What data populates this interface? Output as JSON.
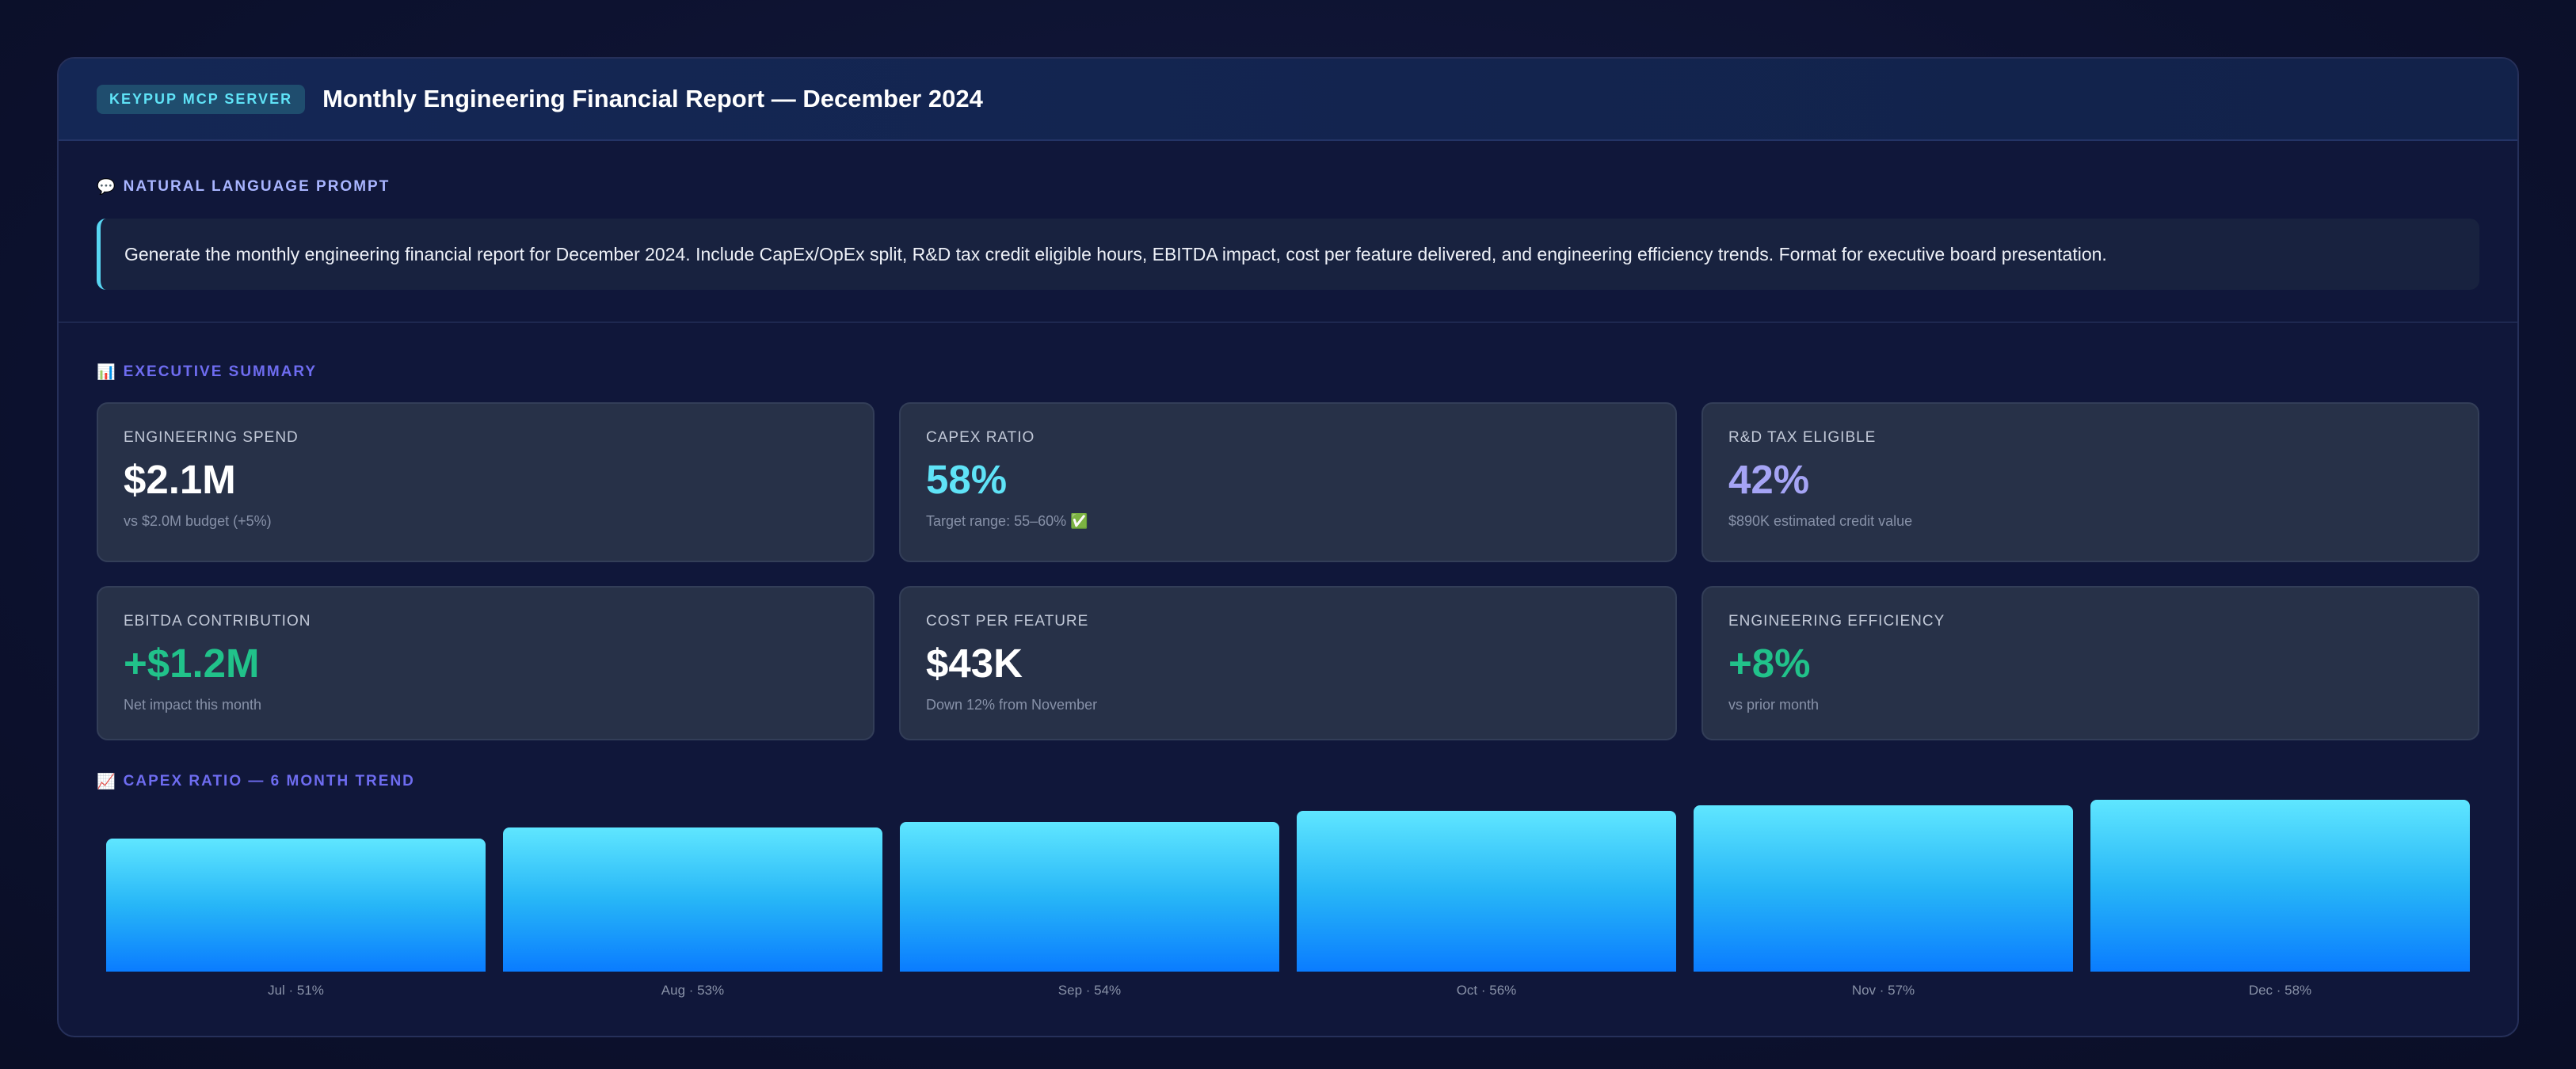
{
  "header": {
    "badge": "KEYPUP MCP SERVER",
    "title": "Monthly Engineering Financial Report — December 2024"
  },
  "prompt": {
    "icon": "speech-bubble-icon",
    "label": "NATURAL LANGUAGE PROMPT",
    "text": "Generate the monthly engineering financial report for December 2024. Include CapEx/OpEx split, R&D tax credit eligible hours, EBITDA impact, cost per feature delivered, and engineering efficiency trends. Format for executive board presentation."
  },
  "summary": {
    "icon": "bar-chart-icon",
    "label": "EXECUTIVE SUMMARY",
    "kpis": [
      {
        "label": "ENGINEERING SPEND",
        "value": "$2.1M",
        "sub": "vs $2.0M budget (+5%)",
        "color": "#ffffff"
      },
      {
        "label": "CAPEX RATIO",
        "value": "58%",
        "sub": "Target range: 55–60% ✅",
        "color": "#5fe3f7"
      },
      {
        "label": "R&D TAX ELIGIBLE",
        "value": "42%",
        "sub": "$890K estimated credit value",
        "color": "#a5a4f5"
      },
      {
        "label": "EBITDA CONTRIBUTION",
        "value": "+$1.2M",
        "sub": "Net impact this month",
        "color": "#21c28a"
      },
      {
        "label": "COST PER FEATURE",
        "value": "$43K",
        "sub": "Down 12% from November",
        "color": "#ffffff"
      },
      {
        "label": "ENGINEERING EFFICIENCY",
        "value": "+8%",
        "sub": "vs prior month",
        "color": "#21c28a"
      }
    ]
  },
  "trend": {
    "icon": "trend-chart-icon",
    "label": "CAPEX RATIO — 6 MONTH TREND"
  },
  "chart_data": {
    "type": "bar",
    "categories": [
      "Jul",
      "Aug",
      "Sep",
      "Oct",
      "Nov",
      "Dec"
    ],
    "values": [
      51,
      53,
      54,
      56,
      57,
      58
    ],
    "bar_labels": [
      "Jul · 51%",
      "Aug · 53%",
      "Sep · 54%",
      "Oct · 56%",
      "Nov · 57%",
      "Dec · 58%"
    ],
    "title": "CAPEX RATIO — 6 MONTH TREND",
    "unit": "%",
    "grid": false
  }
}
